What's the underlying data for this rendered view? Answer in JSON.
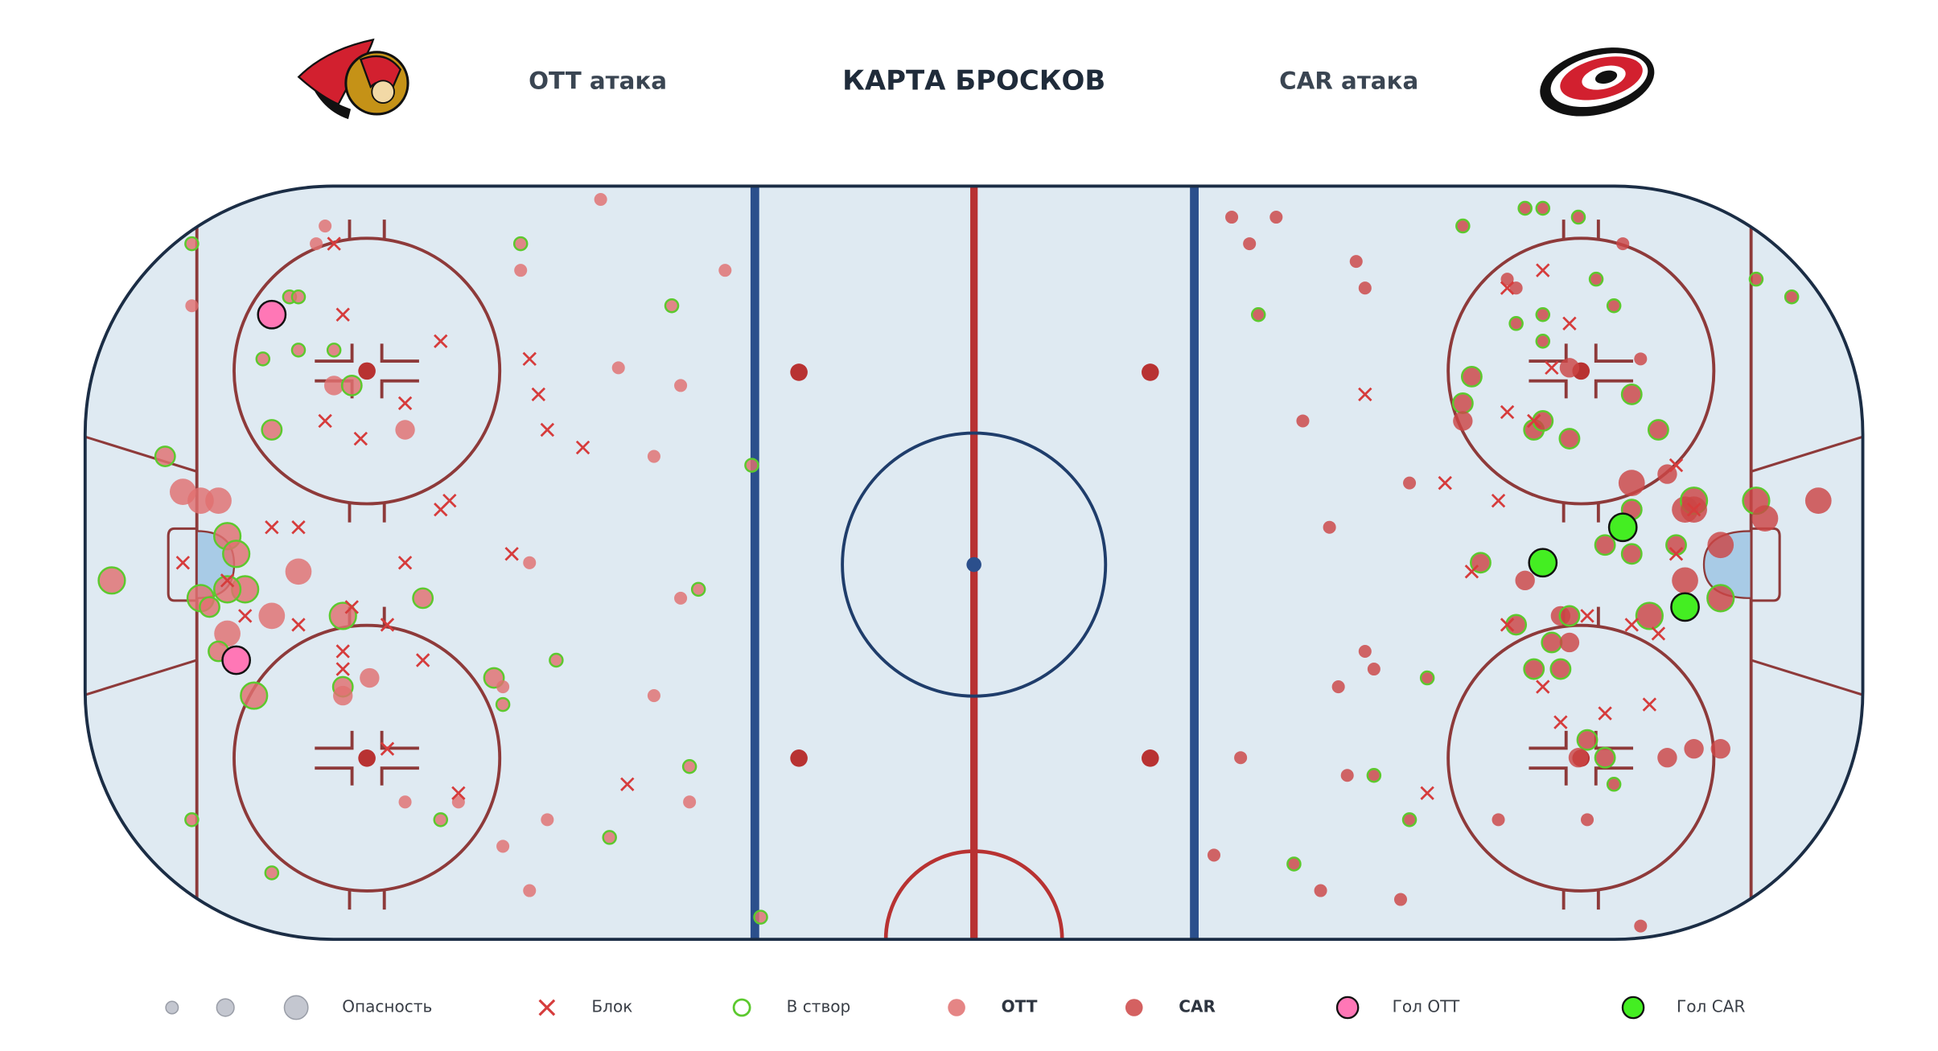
{
  "chart_data": {
    "type": "scatter",
    "title": "КАРТА БРОСКОВ",
    "left_label": "OTT атака",
    "right_label": "CAR атака",
    "xlim": [
      -100,
      100
    ],
    "ylim": [
      -42.5,
      42.5
    ],
    "size_label": "Опасность",
    "on_target_label": "В створ",
    "on_target_color": "#5cc92e",
    "series": [
      {
        "name": "OTT",
        "color": "#e07070",
        "marker": "circle",
        "x": [
          -42,
          -73,
          -74,
          -88,
          -51,
          -51,
          -28,
          -77,
          -76,
          -88,
          -34,
          -72,
          -76,
          -80,
          -40,
          -72,
          -70,
          -33,
          -79,
          -64,
          -36,
          -25,
          -91,
          -89,
          -87,
          -85,
          -84,
          -83,
          -76,
          -97,
          -50,
          -82,
          -84,
          -87,
          -86,
          -79,
          -71,
          -62,
          -33,
          -31,
          -84,
          -85,
          -47,
          -68,
          -71,
          -71,
          -81,
          -54,
          -53,
          -53,
          -36,
          -32,
          -64,
          -58,
          -32,
          -88,
          -60,
          -48,
          -41,
          -53,
          -79,
          -50,
          -24
        ],
        "y": [
          41,
          38,
          36,
          36,
          36,
          33,
          33,
          30,
          30,
          29,
          29,
          24,
          24,
          23,
          22,
          20,
          20,
          20,
          15,
          15,
          12,
          11,
          12,
          8,
          7,
          7,
          3,
          1,
          -1,
          -2,
          0,
          -3,
          -3,
          -4,
          -5,
          -6,
          -6,
          -4,
          -4,
          -3,
          -8,
          -10,
          -11,
          -13,
          -14,
          -15,
          -15,
          -13,
          -14,
          -16,
          -15,
          -23,
          -27,
          -27,
          -27,
          -29,
          -29,
          -29,
          -31,
          -32,
          -35,
          -37,
          -40
        ],
        "size": [
          1,
          1,
          1,
          1,
          1,
          1,
          1,
          1,
          1,
          1,
          1,
          1,
          1,
          1,
          1,
          2,
          2,
          1,
          2,
          2,
          1,
          1,
          2,
          3,
          3,
          3,
          3,
          3,
          3,
          3,
          1,
          3,
          3,
          3,
          2,
          3,
          3,
          2,
          1,
          1,
          3,
          2,
          1,
          2,
          2,
          2,
          3,
          2,
          1,
          1,
          1,
          1,
          1,
          1,
          1,
          1,
          1,
          1,
          1,
          1,
          1,
          1,
          1
        ],
        "on_target": [
          false,
          false,
          false,
          true,
          true,
          false,
          false,
          true,
          true,
          false,
          true,
          true,
          true,
          true,
          false,
          false,
          true,
          false,
          true,
          false,
          false,
          true,
          true,
          false,
          false,
          false,
          true,
          true,
          false,
          true,
          false,
          true,
          true,
          true,
          true,
          false,
          true,
          true,
          false,
          true,
          false,
          true,
          true,
          false,
          true,
          false,
          true,
          true,
          false,
          true,
          false,
          true,
          false,
          false,
          false,
          true,
          true,
          false,
          true,
          false,
          true,
          false,
          true
        ]
      },
      {
        "name": "CAR",
        "color": "#cc4545",
        "marker": "circle",
        "x": [
          29,
          34,
          31,
          55,
          62,
          64,
          68,
          73,
          43,
          44,
          88,
          92,
          60,
          61,
          70,
          72,
          64,
          61,
          64,
          32,
          75,
          67,
          56,
          74,
          55,
          55,
          63,
          67,
          64,
          77,
          78,
          37,
          49,
          74,
          74,
          80,
          81,
          81,
          88,
          89,
          95,
          40,
          71,
          74,
          79,
          84,
          57,
          62,
          80,
          84,
          66,
          67,
          76,
          61,
          65,
          67,
          44,
          45,
          63,
          66,
          51,
          41,
          69,
          68,
          71,
          78,
          81,
          84,
          30,
          42,
          45,
          72,
          49,
          59,
          69,
          27,
          36,
          39,
          48,
          75
        ],
        "y": [
          39,
          39,
          36,
          38,
          40,
          40,
          39,
          36,
          34,
          31,
          32,
          30,
          32,
          31,
          32,
          29,
          28,
          27,
          25,
          28,
          23,
          22,
          21,
          19,
          18,
          16,
          15,
          14,
          16,
          15,
          10,
          16,
          9,
          9,
          6,
          6,
          7,
          6,
          7,
          5,
          7,
          4,
          2,
          1,
          2,
          2,
          0,
          -2,
          -2,
          -4,
          -6,
          -6,
          -6,
          -7,
          -9,
          -9,
          -10,
          -12,
          -12,
          -12,
          -13,
          -14,
          -20,
          -22,
          -22,
          -22,
          -21,
          -21,
          -22,
          -24,
          -24,
          -25,
          -29,
          -29,
          -29,
          -33,
          -34,
          -37,
          -38,
          -41
        ],
        "size": [
          1,
          1,
          1,
          1,
          1,
          1,
          1,
          1,
          1,
          1,
          1,
          1,
          1,
          1,
          1,
          1,
          1,
          1,
          1,
          1,
          1,
          2,
          2,
          2,
          2,
          2,
          2,
          2,
          2,
          2,
          2,
          1,
          1,
          3,
          2,
          3,
          3,
          3,
          3,
          3,
          3,
          1,
          2,
          2,
          2,
          3,
          2,
          2,
          3,
          3,
          2,
          2,
          3,
          2,
          2,
          2,
          1,
          1,
          2,
          2,
          1,
          1,
          2,
          2,
          2,
          2,
          2,
          2,
          1,
          1,
          1,
          1,
          1,
          1,
          1,
          1,
          1,
          1,
          1,
          1
        ],
        "on_target": [
          false,
          false,
          false,
          true,
          true,
          true,
          true,
          false,
          false,
          false,
          true,
          true,
          false,
          false,
          true,
          true,
          true,
          true,
          true,
          true,
          false,
          false,
          true,
          true,
          true,
          false,
          true,
          true,
          true,
          true,
          false,
          false,
          false,
          false,
          true,
          false,
          true,
          false,
          true,
          false,
          false,
          false,
          true,
          true,
          true,
          false,
          true,
          false,
          false,
          true,
          false,
          true,
          true,
          true,
          true,
          false,
          false,
          false,
          true,
          true,
          true,
          false,
          true,
          false,
          true,
          false,
          false,
          false,
          false,
          false,
          true,
          true,
          true,
          false,
          false,
          false,
          true,
          false,
          false,
          false
        ]
      },
      {
        "name": "Блок",
        "color": "#d63c3c",
        "marker": "cross",
        "x": [
          -72,
          -71,
          -60,
          -50,
          -49,
          -64,
          -73,
          -48,
          -69,
          -44,
          -59,
          -60,
          -79,
          -76,
          -52,
          -89,
          -64,
          -84,
          -70,
          -82,
          -76,
          -66,
          -71,
          -62,
          -71,
          -66,
          -58,
          -39,
          64,
          60,
          67,
          65,
          44,
          60,
          63,
          79,
          53,
          59,
          81,
          79,
          56,
          60,
          69,
          74,
          77,
          64,
          76,
          66,
          71,
          51
        ],
        "y": [
          36,
          28,
          25,
          23,
          19,
          18,
          16,
          15,
          14,
          13,
          7,
          6,
          4,
          4,
          1,
          0,
          0,
          -2,
          -5,
          -6,
          -7,
          -7,
          -10,
          -11,
          -12,
          -21,
          -26,
          -25,
          33,
          31,
          27,
          22,
          19,
          17,
          16,
          11,
          9,
          7,
          6,
          1,
          -1,
          -7,
          -6,
          -7,
          -8,
          -14,
          -16,
          -18,
          -17,
          -26
        ]
      },
      {
        "name": "Гол OTT",
        "color": "#ff77b6",
        "marker": "goal",
        "x": [
          -79,
          -83
        ],
        "y": [
          28,
          -11
        ],
        "size": [
          3,
          3
        ]
      },
      {
        "name": "Гол CAR",
        "color": "#44ee22",
        "marker": "goal",
        "x": [
          73,
          64,
          80
        ],
        "y": [
          4,
          0,
          -5
        ],
        "size": [
          3,
          3,
          3
        ]
      }
    ]
  }
}
